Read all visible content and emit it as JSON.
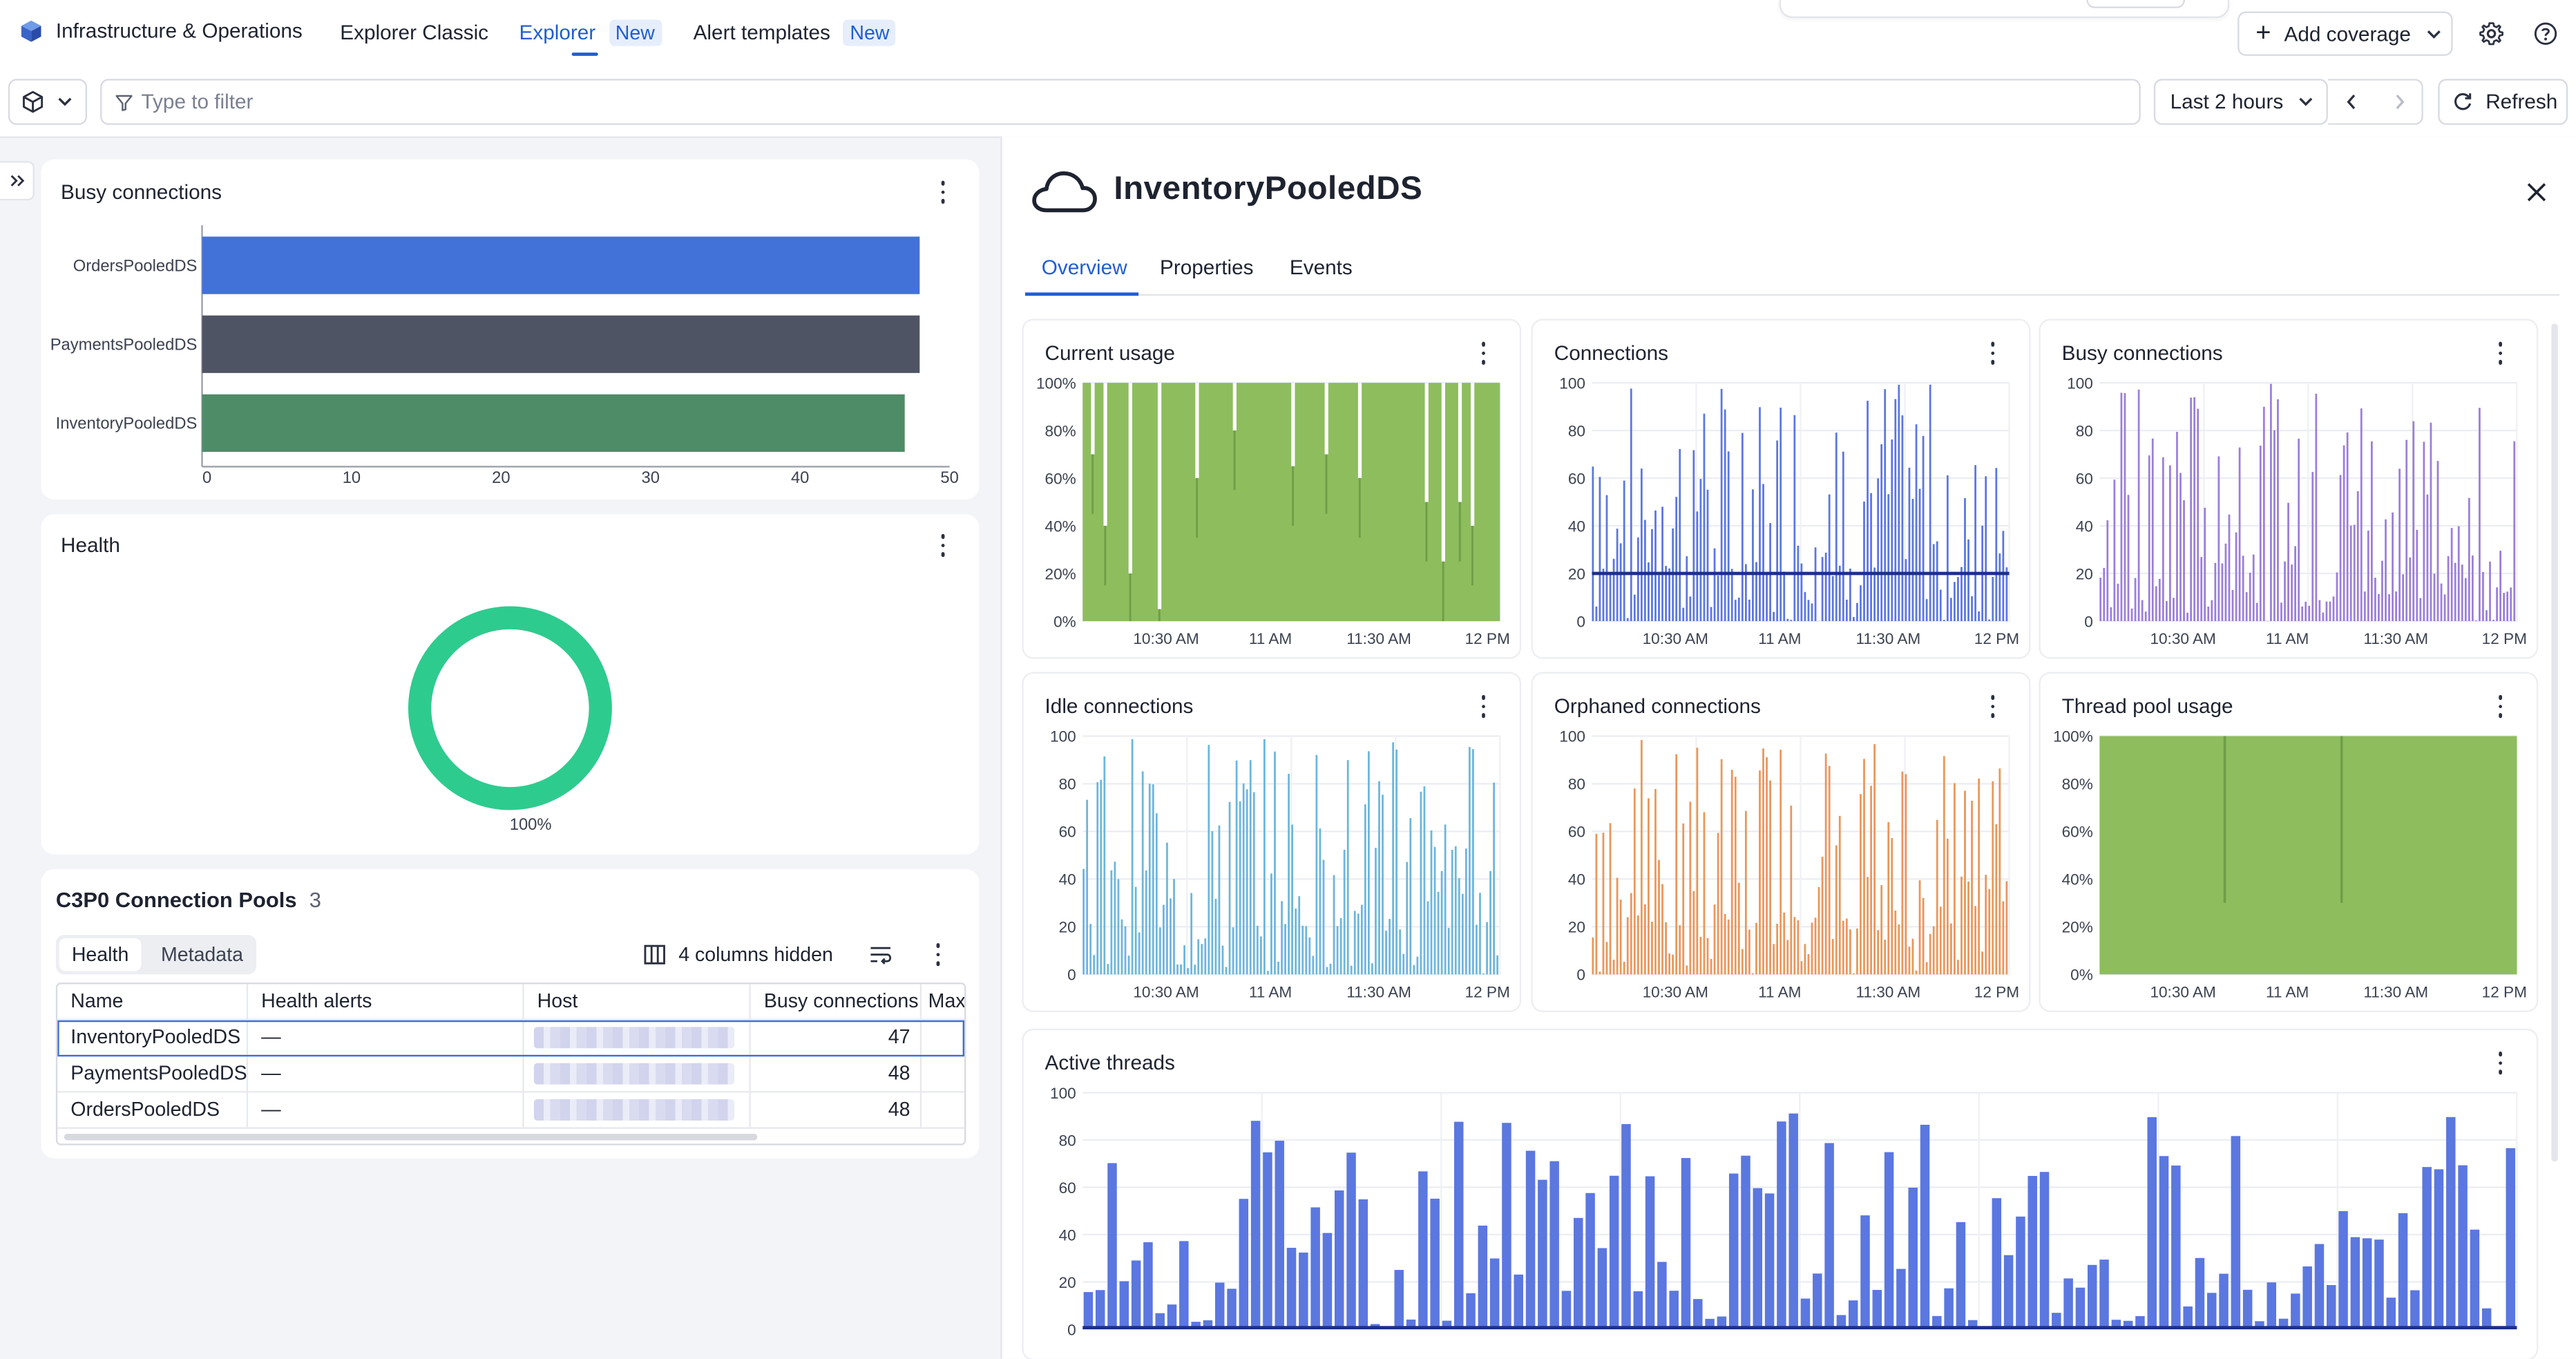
{
  "topbar": {
    "app_name": "Infrastructure & Operations",
    "tabs": [
      {
        "label": "Explorer Classic",
        "badge": ""
      },
      {
        "label": "Explorer",
        "badge": "New"
      },
      {
        "label": "Alert templates",
        "badge": "New"
      }
    ],
    "add_coverage": "Add coverage"
  },
  "filterbar": {
    "filter_placeholder": "Type to filter",
    "timeframe": "Last 2 hours",
    "refresh": "Refresh"
  },
  "left": {
    "busy_card": {
      "title": "Busy connections",
      "chart_data": {
        "type": "bar",
        "orientation": "horizontal",
        "categories": [
          "OrdersPooledDS",
          "PaymentsPooledDS",
          "InventoryPooledDS"
        ],
        "values": [
          48,
          48,
          47
        ],
        "xlim": [
          0,
          50
        ],
        "ticks": [
          "0",
          "10",
          "20",
          "30",
          "40",
          "50"
        ],
        "colors": [
          "#4271d8",
          "#4f5464",
          "#4e8c68"
        ]
      }
    },
    "health_card": {
      "title": "Health",
      "percent_label": "100%",
      "chart_data": {
        "type": "pie",
        "values": [
          100
        ],
        "color": "#2ecb8e"
      }
    },
    "pools": {
      "title": "C3P0 Connection Pools",
      "count": "3",
      "tabs": [
        "Health",
        "Metadata"
      ],
      "columns_hidden": "4 columns hidden",
      "columns": [
        "Name",
        "Health alerts",
        "Host",
        "Busy connections",
        "Max"
      ],
      "rows": [
        {
          "name": "InventoryPooledDS",
          "alerts": "—",
          "busy": "47"
        },
        {
          "name": "PaymentsPooledDS",
          "alerts": "—",
          "busy": "48"
        },
        {
          "name": "OrdersPooledDS",
          "alerts": "—",
          "busy": "48"
        }
      ]
    }
  },
  "detail": {
    "title": "InventoryPooledDS",
    "tabs": [
      "Overview",
      "Properties",
      "Events"
    ],
    "tiles": [
      {
        "title": "Current usage",
        "y_ticks": [
          "100%",
          "80%",
          "60%",
          "40%",
          "20%",
          "0%"
        ],
        "x_ticks": [
          "10:30 AM",
          "11 AM",
          "11:30 AM",
          "12 PM"
        ]
      },
      {
        "title": "Connections",
        "y_ticks": [
          "100",
          "80",
          "60",
          "40",
          "20",
          "0"
        ],
        "x_ticks": [
          "10:30 AM",
          "11 AM",
          "11:30 AM",
          "12 PM"
        ]
      },
      {
        "title": "Busy connections",
        "y_ticks": [
          "100",
          "80",
          "60",
          "40",
          "20",
          "0"
        ],
        "x_ticks": [
          "10:30 AM",
          "11 AM",
          "11:30 AM",
          "12 PM"
        ]
      },
      {
        "title": "Idle connections",
        "y_ticks": [
          "100",
          "80",
          "60",
          "40",
          "20",
          "0"
        ],
        "x_ticks": [
          "10:30 AM",
          "11 AM",
          "11:30 AM",
          "12 PM"
        ]
      },
      {
        "title": "Orphaned connections",
        "y_ticks": [
          "100",
          "80",
          "60",
          "40",
          "20",
          "0"
        ],
        "x_ticks": [
          "10:30 AM",
          "11 AM",
          "11:30 AM",
          "12 PM"
        ]
      },
      {
        "title": "Thread pool usage",
        "y_ticks": [
          "100%",
          "80%",
          "60%",
          "40%",
          "20%",
          "0%"
        ],
        "x_ticks": [
          "10:30 AM",
          "11 AM",
          "11:30 AM",
          "12 PM"
        ]
      },
      {
        "title": "Active threads",
        "y_ticks": [
          "100",
          "80",
          "60",
          "40",
          "20",
          "0"
        ],
        "x_ticks": []
      }
    ],
    "colors": {
      "green": "#8ebd5e",
      "blue": "#5b77e0",
      "purple": "#9b7fd8",
      "lightblue": "#6cb6dc",
      "orange": "#e9975a",
      "active": "#5b77e0"
    }
  }
}
